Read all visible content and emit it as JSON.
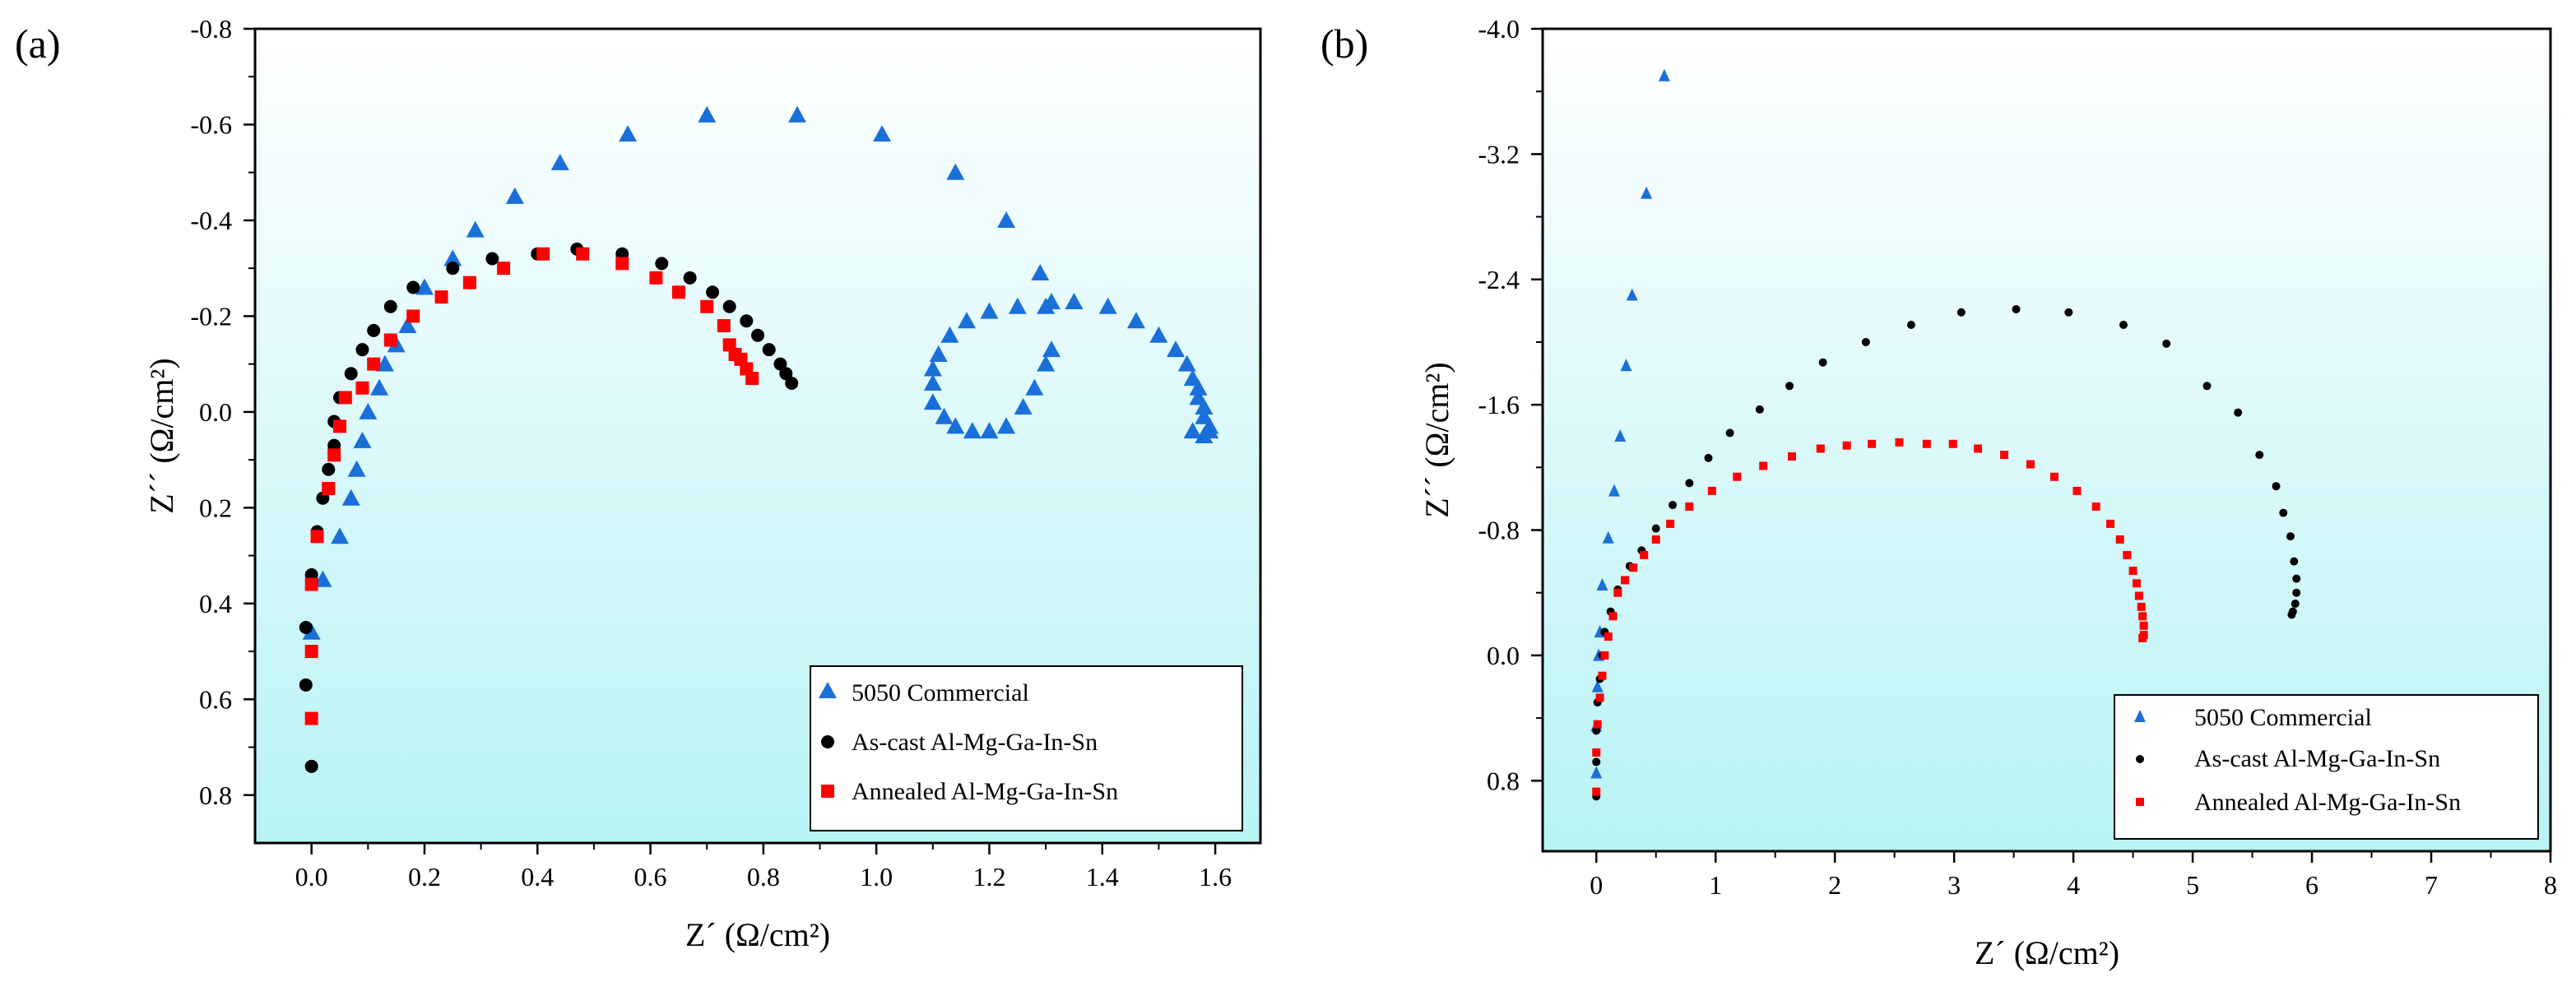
{
  "colors": {
    "bg_top": "#ffffff",
    "bg_bottom": "#b8f3f5",
    "commercial": "#1a6fd8",
    "ascast": "#000000",
    "annealed": "#ff0000"
  },
  "legend": [
    "5050 Commercial",
    "As-cast Al-Mg-Ga-In-Sn",
    "Annealed Al-Mg-Ga-In-Sn"
  ],
  "chart_data": [
    {
      "type": "scatter",
      "panel_label": "(a)",
      "xlabel": "Z´ (Ω/cm²)",
      "ylabel": "Z´´ (Ω/cm²)",
      "xlim": [
        -0.1,
        1.68
      ],
      "ylim": [
        0.9,
        -0.8
      ],
      "xticks": [
        0,
        0.2,
        0.4,
        0.6,
        0.8,
        1.0,
        1.2,
        1.4,
        1.6
      ],
      "xticklabels": [
        "0.0",
        "0.2",
        "0.4",
        "0.6",
        "0.8",
        "1.0",
        "1.2",
        "1.4",
        "1.6"
      ],
      "yticks": [
        -0.8,
        -0.6,
        -0.4,
        -0.2,
        0,
        0.2,
        0.4,
        0.6,
        0.8
      ],
      "yticklabels": [
        "-0.8",
        "-0.6",
        "-0.4",
        "-0.2",
        "0.0",
        "0.2",
        "0.4",
        "0.6",
        "0.8"
      ],
      "series": [
        {
          "name": "5050 Commercial",
          "marker": "triangle",
          "points": [
            [
              0.0,
              0.46
            ],
            [
              0.02,
              0.35
            ],
            [
              0.05,
              0.26
            ],
            [
              0.07,
              0.18
            ],
            [
              0.08,
              0.12
            ],
            [
              0.09,
              0.06
            ],
            [
              0.1,
              0.0
            ],
            [
              0.12,
              -0.05
            ],
            [
              0.13,
              -0.1
            ],
            [
              0.15,
              -0.14
            ],
            [
              0.17,
              -0.18
            ],
            [
              0.2,
              -0.26
            ],
            [
              0.25,
              -0.32
            ],
            [
              0.29,
              -0.38
            ],
            [
              0.36,
              -0.45
            ],
            [
              0.44,
              -0.52
            ],
            [
              0.56,
              -0.58
            ],
            [
              0.7,
              -0.62
            ],
            [
              0.86,
              -0.62
            ],
            [
              1.01,
              -0.58
            ],
            [
              1.14,
              -0.5
            ],
            [
              1.23,
              -0.4
            ],
            [
              1.29,
              -0.29
            ],
            [
              1.31,
              -0.23
            ],
            [
              1.31,
              -0.13
            ],
            [
              1.3,
              -0.1
            ],
            [
              1.28,
              -0.05
            ],
            [
              1.26,
              -0.01
            ],
            [
              1.23,
              0.03
            ],
            [
              1.2,
              0.04
            ],
            [
              1.17,
              0.04
            ],
            [
              1.14,
              0.03
            ],
            [
              1.12,
              0.01
            ],
            [
              1.1,
              -0.02
            ],
            [
              1.1,
              -0.06
            ],
            [
              1.1,
              -0.09
            ],
            [
              1.11,
              -0.12
            ],
            [
              1.13,
              -0.16
            ],
            [
              1.16,
              -0.19
            ],
            [
              1.2,
              -0.21
            ],
            [
              1.25,
              -0.22
            ],
            [
              1.3,
              -0.22
            ],
            [
              1.35,
              -0.23
            ],
            [
              1.41,
              -0.22
            ],
            [
              1.46,
              -0.19
            ],
            [
              1.5,
              -0.16
            ],
            [
              1.53,
              -0.13
            ],
            [
              1.55,
              -0.1
            ],
            [
              1.56,
              -0.07
            ],
            [
              1.57,
              -0.05
            ],
            [
              1.57,
              -0.03
            ],
            [
              1.58,
              -0.01
            ],
            [
              1.58,
              0.01
            ],
            [
              1.59,
              0.03
            ],
            [
              1.59,
              0.04
            ],
            [
              1.58,
              0.05
            ],
            [
              1.56,
              0.04
            ]
          ]
        },
        {
          "name": "As-cast Al-Mg-Ga-In-Sn",
          "marker": "circle",
          "points": [
            [
              0.0,
              0.74
            ],
            [
              -0.01,
              0.57
            ],
            [
              -0.01,
              0.45
            ],
            [
              0.0,
              0.34
            ],
            [
              0.01,
              0.25
            ],
            [
              0.02,
              0.18
            ],
            [
              0.03,
              0.12
            ],
            [
              0.04,
              0.07
            ],
            [
              0.04,
              0.02
            ],
            [
              0.05,
              -0.03
            ],
            [
              0.07,
              -0.08
            ],
            [
              0.09,
              -0.13
            ],
            [
              0.11,
              -0.17
            ],
            [
              0.14,
              -0.22
            ],
            [
              0.18,
              -0.26
            ],
            [
              0.25,
              -0.3
            ],
            [
              0.32,
              -0.32
            ],
            [
              0.4,
              -0.33
            ],
            [
              0.47,
              -0.34
            ],
            [
              0.55,
              -0.33
            ],
            [
              0.62,
              -0.31
            ],
            [
              0.67,
              -0.28
            ],
            [
              0.71,
              -0.25
            ],
            [
              0.74,
              -0.22
            ],
            [
              0.77,
              -0.19
            ],
            [
              0.79,
              -0.16
            ],
            [
              0.81,
              -0.13
            ],
            [
              0.83,
              -0.1
            ],
            [
              0.84,
              -0.08
            ],
            [
              0.85,
              -0.06
            ]
          ]
        },
        {
          "name": "Annealed Al-Mg-Ga-In-Sn",
          "marker": "square",
          "points": [
            [
              0.0,
              0.64
            ],
            [
              0.0,
              0.5
            ],
            [
              0.0,
              0.36
            ],
            [
              0.01,
              0.26
            ],
            [
              0.03,
              0.16
            ],
            [
              0.04,
              0.09
            ],
            [
              0.05,
              0.03
            ],
            [
              0.06,
              -0.03
            ],
            [
              0.09,
              -0.05
            ],
            [
              0.11,
              -0.1
            ],
            [
              0.14,
              -0.15
            ],
            [
              0.18,
              -0.2
            ],
            [
              0.23,
              -0.24
            ],
            [
              0.28,
              -0.27
            ],
            [
              0.34,
              -0.3
            ],
            [
              0.41,
              -0.33
            ],
            [
              0.48,
              -0.33
            ],
            [
              0.55,
              -0.31
            ],
            [
              0.61,
              -0.28
            ],
            [
              0.65,
              -0.25
            ],
            [
              0.7,
              -0.22
            ],
            [
              0.73,
              -0.18
            ],
            [
              0.74,
              -0.14
            ],
            [
              0.76,
              -0.11
            ],
            [
              0.77,
              -0.09
            ],
            [
              0.78,
              -0.07
            ],
            [
              0.75,
              -0.12
            ]
          ]
        }
      ]
    },
    {
      "type": "scatter",
      "panel_label": "(b)",
      "xlabel": "Z´ (Ω/cm²)",
      "ylabel": "Z´´ (Ω/cm²)",
      "xlim": [
        -0.45,
        8
      ],
      "ylim": [
        1.25,
        -4.0
      ],
      "xticks": [
        0,
        1,
        2,
        3,
        4,
        5,
        6,
        7,
        8
      ],
      "xticklabels": [
        "0",
        "1",
        "2",
        "3",
        "4",
        "5",
        "6",
        "7",
        "8"
      ],
      "yticks": [
        -4.0,
        -3.2,
        -2.4,
        -1.6,
        -0.8,
        0,
        0.8
      ],
      "yticklabels": [
        "-4.0",
        "-3.2",
        "-2.4",
        "-1.6",
        "-0.8",
        "0.0",
        "0.8"
      ],
      "series": [
        {
          "name": "5050 Commercial",
          "marker": "triangle",
          "points": [
            [
              0.0,
              0.75
            ],
            [
              0.0,
              0.45
            ],
            [
              0.01,
              0.2
            ],
            [
              0.02,
              0.0
            ],
            [
              0.03,
              -0.15
            ],
            [
              0.05,
              -0.45
            ],
            [
              0.1,
              -0.75
            ],
            [
              0.15,
              -1.05
            ],
            [
              0.2,
              -1.4
            ],
            [
              0.25,
              -1.85
            ],
            [
              0.3,
              -2.3
            ],
            [
              0.42,
              -2.95
            ],
            [
              0.57,
              -3.7
            ]
          ]
        },
        {
          "name": "As-cast Al-Mg-Ga-In-Sn",
          "marker": "circle",
          "points": [
            [
              0.0,
              0.9
            ],
            [
              0.0,
              0.68
            ],
            [
              0.0,
              0.48
            ],
            [
              0.01,
              0.3
            ],
            [
              0.03,
              0.15
            ],
            [
              0.05,
              0.0
            ],
            [
              0.07,
              -0.15
            ],
            [
              0.12,
              -0.28
            ],
            [
              0.18,
              -0.42
            ],
            [
              0.28,
              -0.57
            ],
            [
              0.38,
              -0.67
            ],
            [
              0.5,
              -0.81
            ],
            [
              0.64,
              -0.96
            ],
            [
              0.78,
              -1.1
            ],
            [
              0.94,
              -1.26
            ],
            [
              1.12,
              -1.42
            ],
            [
              1.37,
              -1.57
            ],
            [
              1.62,
              -1.72
            ],
            [
              1.9,
              -1.87
            ],
            [
              2.26,
              -2.0
            ],
            [
              2.64,
              -2.11
            ],
            [
              3.06,
              -2.19
            ],
            [
              3.52,
              -2.21
            ],
            [
              3.96,
              -2.19
            ],
            [
              4.42,
              -2.11
            ],
            [
              4.78,
              -1.99
            ],
            [
              5.12,
              -1.72
            ],
            [
              5.38,
              -1.55
            ],
            [
              5.56,
              -1.28
            ],
            [
              5.7,
              -1.08
            ],
            [
              5.76,
              -0.91
            ],
            [
              5.82,
              -0.76
            ],
            [
              5.85,
              -0.6
            ],
            [
              5.87,
              -0.49
            ],
            [
              5.87,
              -0.4
            ],
            [
              5.86,
              -0.33
            ],
            [
              5.84,
              -0.28
            ],
            [
              5.83,
              -0.26
            ]
          ]
        },
        {
          "name": "Annealed Al-Mg-Ga-In-Sn",
          "marker": "square",
          "points": [
            [
              0.0,
              0.87
            ],
            [
              0.0,
              0.62
            ],
            [
              0.01,
              0.44
            ],
            [
              0.03,
              0.27
            ],
            [
              0.05,
              0.13
            ],
            [
              0.07,
              0.0
            ],
            [
              0.1,
              -0.12
            ],
            [
              0.14,
              -0.25
            ],
            [
              0.18,
              -0.4
            ],
            [
              0.24,
              -0.48
            ],
            [
              0.31,
              -0.56
            ],
            [
              0.4,
              -0.64
            ],
            [
              0.5,
              -0.74
            ],
            [
              0.62,
              -0.84
            ],
            [
              0.78,
              -0.95
            ],
            [
              0.97,
              -1.05
            ],
            [
              1.18,
              -1.14
            ],
            [
              1.4,
              -1.21
            ],
            [
              1.64,
              -1.27
            ],
            [
              1.88,
              -1.32
            ],
            [
              2.1,
              -1.34
            ],
            [
              2.31,
              -1.35
            ],
            [
              2.54,
              -1.36
            ],
            [
              2.77,
              -1.35
            ],
            [
              2.99,
              -1.35
            ],
            [
              3.2,
              -1.32
            ],
            [
              3.42,
              -1.28
            ],
            [
              3.64,
              -1.22
            ],
            [
              3.84,
              -1.14
            ],
            [
              4.03,
              -1.05
            ],
            [
              4.19,
              -0.95
            ],
            [
              4.31,
              -0.84
            ],
            [
              4.39,
              -0.74
            ],
            [
              4.45,
              -0.64
            ],
            [
              4.5,
              -0.54
            ],
            [
              4.53,
              -0.46
            ],
            [
              4.55,
              -0.38
            ],
            [
              4.57,
              -0.31
            ],
            [
              4.58,
              -0.25
            ],
            [
              4.59,
              -0.19
            ],
            [
              4.59,
              -0.13
            ],
            [
              4.58,
              -0.11
            ]
          ]
        }
      ]
    }
  ]
}
